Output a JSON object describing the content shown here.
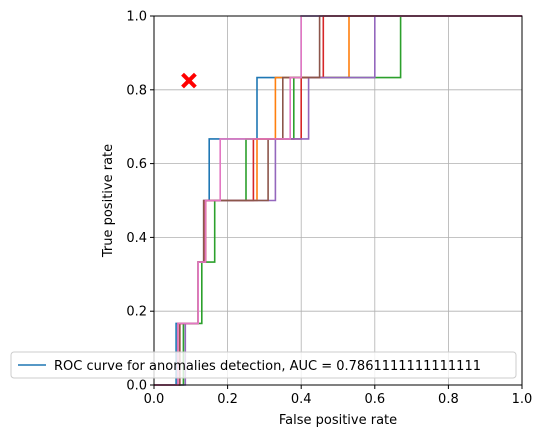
{
  "chart_data": {
    "type": "line",
    "xlabel": "False positive rate",
    "ylabel": "True positive rate",
    "xlim": [
      0,
      1
    ],
    "ylim": [
      0,
      1
    ],
    "xticks": [
      0.0,
      0.2,
      0.4,
      0.6,
      0.8,
      1.0
    ],
    "yticks": [
      0.0,
      0.2,
      0.4,
      0.6,
      0.8,
      1.0
    ],
    "xtick_labels": [
      "0.0",
      "0.2",
      "0.4",
      "0.6",
      "0.8",
      "1.0"
    ],
    "ytick_labels": [
      "0.0",
      "0.2",
      "0.4",
      "0.6",
      "0.8",
      "1.0"
    ],
    "grid": true,
    "legend_position": "lower-left",
    "legend": [
      "ROC curve for anomalies detection, AUC = 0.7861111111111111"
    ],
    "series": [
      {
        "color": "#1f77b4",
        "x": [
          0,
          0.06,
          0.06,
          0.1,
          0.1,
          0.12,
          0.12,
          0.14,
          0.14,
          0.15,
          0.15,
          0.17,
          0.17,
          0.28,
          0.28,
          0.33,
          0.33,
          0.4,
          0.4,
          1.0
        ],
        "y": [
          0,
          0,
          0.167,
          0.167,
          0.167,
          0.167,
          0.333,
          0.333,
          0.5,
          0.5,
          0.667,
          0.667,
          0.667,
          0.667,
          0.833,
          0.833,
          0.833,
          0.833,
          1.0,
          1.0
        ]
      },
      {
        "color": "#ff7f0e",
        "x": [
          0,
          0.07,
          0.07,
          0.12,
          0.12,
          0.14,
          0.14,
          0.18,
          0.18,
          0.28,
          0.28,
          0.33,
          0.33,
          0.53,
          0.53,
          1.0
        ],
        "y": [
          0,
          0,
          0.167,
          0.167,
          0.333,
          0.333,
          0.5,
          0.5,
          0.5,
          0.5,
          0.667,
          0.667,
          0.833,
          0.833,
          1.0,
          1.0
        ]
      },
      {
        "color": "#2ca02c",
        "x": [
          0,
          0.08,
          0.08,
          0.13,
          0.13,
          0.165,
          0.165,
          0.25,
          0.25,
          0.38,
          0.38,
          0.67,
          0.67,
          1.0
        ],
        "y": [
          0,
          0,
          0.167,
          0.167,
          0.333,
          0.333,
          0.5,
          0.5,
          0.667,
          0.667,
          0.833,
          0.833,
          1.0,
          1.0
        ]
      },
      {
        "color": "#d62728",
        "x": [
          0,
          0.065,
          0.065,
          0.12,
          0.12,
          0.14,
          0.14,
          0.27,
          0.27,
          0.4,
          0.4,
          0.46,
          0.46,
          1.0
        ],
        "y": [
          0,
          0,
          0.167,
          0.167,
          0.333,
          0.333,
          0.5,
          0.5,
          0.667,
          0.667,
          0.833,
          0.833,
          1.0,
          1.0
        ]
      },
      {
        "color": "#9467bd",
        "x": [
          0,
          0.085,
          0.085,
          0.12,
          0.12,
          0.135,
          0.135,
          0.33,
          0.33,
          0.42,
          0.42,
          0.6,
          0.6,
          1.0
        ],
        "y": [
          0,
          0,
          0.167,
          0.167,
          0.333,
          0.333,
          0.5,
          0.5,
          0.667,
          0.667,
          0.833,
          0.833,
          1.0,
          1.0
        ]
      },
      {
        "color": "#8c564b",
        "x": [
          0,
          0.07,
          0.07,
          0.12,
          0.12,
          0.135,
          0.135,
          0.31,
          0.31,
          0.35,
          0.35,
          0.45,
          0.45,
          1.0
        ],
        "y": [
          0,
          0,
          0.167,
          0.167,
          0.333,
          0.333,
          0.5,
          0.5,
          0.667,
          0.667,
          0.833,
          0.833,
          1.0,
          1.0
        ]
      },
      {
        "color": "#e377c2",
        "x": [
          0,
          0.065,
          0.065,
          0.12,
          0.12,
          0.14,
          0.14,
          0.18,
          0.18,
          0.37,
          0.37,
          0.4,
          0.4,
          1.0
        ],
        "y": [
          0,
          0,
          0.167,
          0.167,
          0.333,
          0.333,
          0.5,
          0.5,
          0.667,
          0.667,
          0.833,
          0.833,
          1.0,
          1.0
        ]
      }
    ],
    "marker": {
      "x": 0.095,
      "y": 0.825,
      "shape": "X",
      "color": "#ff0000"
    }
  }
}
